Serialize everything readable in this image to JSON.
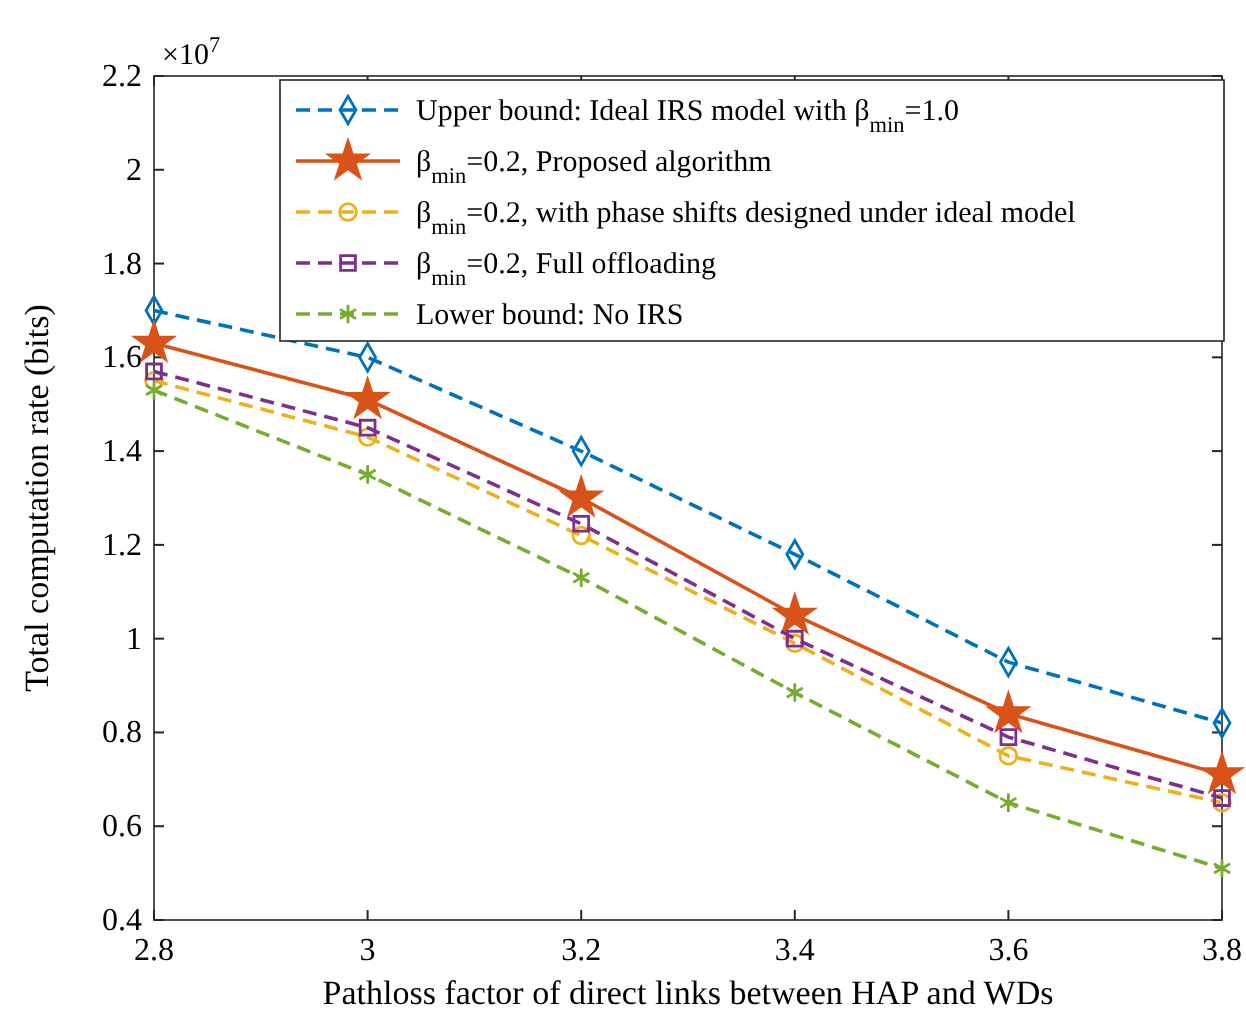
{
  "chart_data": {
    "type": "line",
    "xlabel": "Pathloss factor of direct links between HAP and WDs",
    "ylabel": "Total computation rate (bits)",
    "annotations": [
      "×10$^{7}$"
    ],
    "x": [
      2.8,
      3.0,
      3.2,
      3.4,
      3.6,
      3.8
    ],
    "xlim": [
      2.8,
      3.8
    ],
    "xticks": [
      2.8,
      {
        "value": 3.0,
        "label": "3"
      },
      3.2,
      3.4,
      3.6,
      3.8
    ],
    "ylim": [
      0.4,
      2.2
    ],
    "yticks": [
      0.4,
      0.6,
      0.8,
      {
        "value": 1.0,
        "label": "1"
      },
      1.2,
      1.4,
      1.6,
      1.8,
      {
        "value": 2.0,
        "label": "2"
      },
      2.2
    ],
    "grid": false,
    "legend": "top right",
    "series": [
      {
        "name": "Upper bound: Ideal IRS model with β$_{min}$=1.0",
        "color": "#0072bd",
        "marker": "diamond",
        "line_style": "dashed",
        "values": [
          1.7,
          1.6,
          1.4,
          1.18,
          0.95,
          0.82
        ]
      },
      {
        "name": "β$_{min}$=0.2, Proposed algorithm",
        "color": "#d95319",
        "marker": "star",
        "line_style": "solid",
        "values": [
          1.63,
          1.51,
          1.3,
          1.05,
          0.84,
          0.71
        ]
      },
      {
        "name": "β$_{min}$=0.2, with phase shifts designed under ideal model",
        "color": "#edb120",
        "marker": "circle",
        "line_style": "dashed",
        "values": [
          1.55,
          1.43,
          1.22,
          0.99,
          0.75,
          0.65
        ]
      },
      {
        "name": "β$_{min}$=0.2, Full offloading",
        "color": "#7e2f8e",
        "marker": "square",
        "line_style": "dashed",
        "values": [
          1.57,
          1.45,
          1.245,
          1.0,
          0.79,
          0.66
        ]
      },
      {
        "name": "Lower bound: No IRS",
        "color": "#77ac30",
        "marker": "cross",
        "line_style": "dashed",
        "values": [
          1.53,
          1.35,
          1.13,
          0.885,
          0.65,
          0.51
        ]
      }
    ]
  }
}
